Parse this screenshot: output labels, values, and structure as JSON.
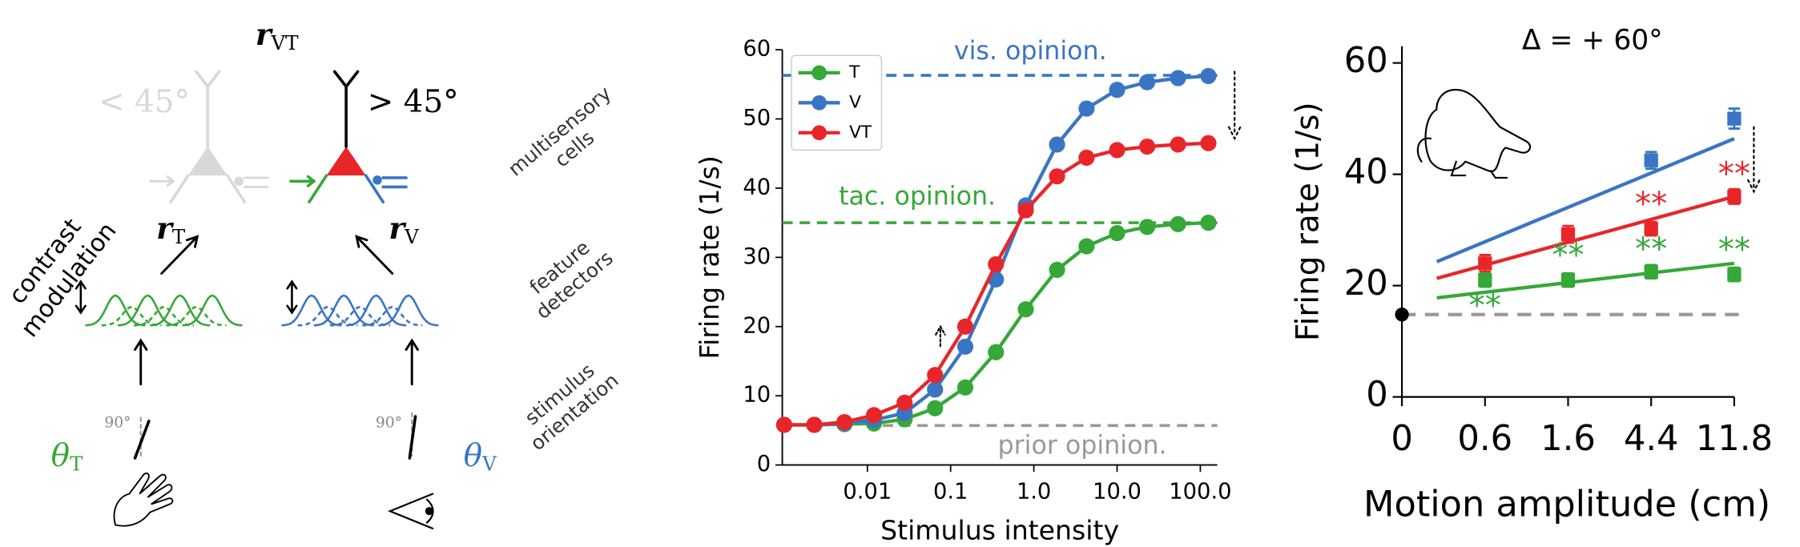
{
  "diagram": {
    "top_output": {
      "symbol": "r",
      "subscript": "VT"
    },
    "angle_left": "< 45°",
    "angle_right": "> 45°",
    "output_t": {
      "symbol": "r",
      "subscript": "T"
    },
    "output_v": {
      "symbol": "r",
      "subscript": "V"
    },
    "modulation": [
      "contrast",
      "modulation"
    ],
    "stages": [
      [
        "multisensory",
        "cells"
      ],
      [
        "feature",
        "detectors"
      ],
      [
        "stimulus",
        "orientation"
      ]
    ],
    "ref_angles": [
      "90°",
      "90°"
    ],
    "input_t": {
      "symbol": "θ",
      "subscript": "T"
    },
    "input_v": {
      "symbol": "θ",
      "subscript": "V"
    }
  },
  "chart_data": [
    {
      "type": "line",
      "xscale": "log",
      "ylabel": "Firing rate (1/s)",
      "xlabel": "Stimulus intensity",
      "x": [
        0.001,
        0.0023,
        0.0053,
        0.012,
        0.028,
        0.065,
        0.15,
        0.35,
        0.8,
        1.9,
        4.3,
        10,
        23,
        54,
        125
      ],
      "series": [
        {
          "name": "T",
          "color": "#35a838",
          "values": [
            5.8,
            5.8,
            5.9,
            6.0,
            6.6,
            8.2,
            11.2,
            16.3,
            22.5,
            28.2,
            31.6,
            33.5,
            34.4,
            34.8,
            35.0
          ]
        },
        {
          "name": "V",
          "color": "#3a75c4",
          "values": [
            5.8,
            5.8,
            6.0,
            6.5,
            7.5,
            10.9,
            17.1,
            26.8,
            37.5,
            46.3,
            51.5,
            54.2,
            55.3,
            55.9,
            56.2
          ]
        },
        {
          "name": "VT",
          "color": "#e8262a",
          "values": [
            5.8,
            5.8,
            6.2,
            7.2,
            9.0,
            13.0,
            20.0,
            29.0,
            36.8,
            41.7,
            44.4,
            45.5,
            46.0,
            46.3,
            46.5
          ]
        }
      ],
      "reference_lines": [
        {
          "label": "vis. opinion.",
          "value": 56.3,
          "color": "#3a75c4"
        },
        {
          "label": "tac. opinion.",
          "value": 35,
          "color": "#35a838"
        },
        {
          "label": "prior opinion.",
          "value": 5.7,
          "color": "#999999"
        }
      ],
      "xlim": [
        0.00095,
        160
      ],
      "ylim": [
        0,
        60
      ],
      "xticks": [
        0.01,
        0.1,
        {
          "value": 1,
          "label": "1.0"
        },
        {
          "value": 10,
          "label": "10.0"
        },
        {
          "value": 100,
          "label": "100.0"
        }
      ],
      "yticks": [
        0,
        10,
        20,
        30,
        40,
        50,
        60
      ],
      "legend": "upper left"
    },
    {
      "type": "dot",
      "title": "Δ = + 60°",
      "ylabel": "Firing rate (1/s)",
      "xlabel": "Motion amplitude (cm)",
      "categories": [
        "0",
        "0.6",
        "1.6",
        "4.4",
        "11.8"
      ],
      "baseline": 14.8,
      "series": [
        {
          "color": "#000000",
          "values": [
            14.8,
            null,
            null,
            null,
            null
          ]
        },
        {
          "color": "#3a75c4",
          "values": [
            null,
            null,
            null,
            42.5,
            50
          ],
          "errors": [
            null,
            null,
            null,
            1.5,
            1.8
          ],
          "fit": [
            24.3,
            46.4
          ]
        },
        {
          "color": "#e8262a",
          "values": [
            null,
            24,
            29.2,
            30.2,
            36
          ],
          "errors": [
            null,
            1.5,
            1.5,
            1.2,
            1.3
          ],
          "fit": [
            21.3,
            36
          ],
          "labels": [
            null,
            null,
            null,
            "**",
            "**"
          ]
        },
        {
          "color": "#35a838",
          "values": [
            null,
            21,
            21,
            22.5,
            22
          ],
          "errors": [
            null,
            1.2,
            1.2,
            1.2,
            1.2
          ],
          "fit": [
            17.8,
            24
          ],
          "labels": [
            null,
            "**",
            "**",
            "**",
            "**"
          ]
        }
      ],
      "ylim": [
        0,
        63
      ],
      "yticks": [
        0,
        20,
        40,
        60
      ]
    }
  ]
}
